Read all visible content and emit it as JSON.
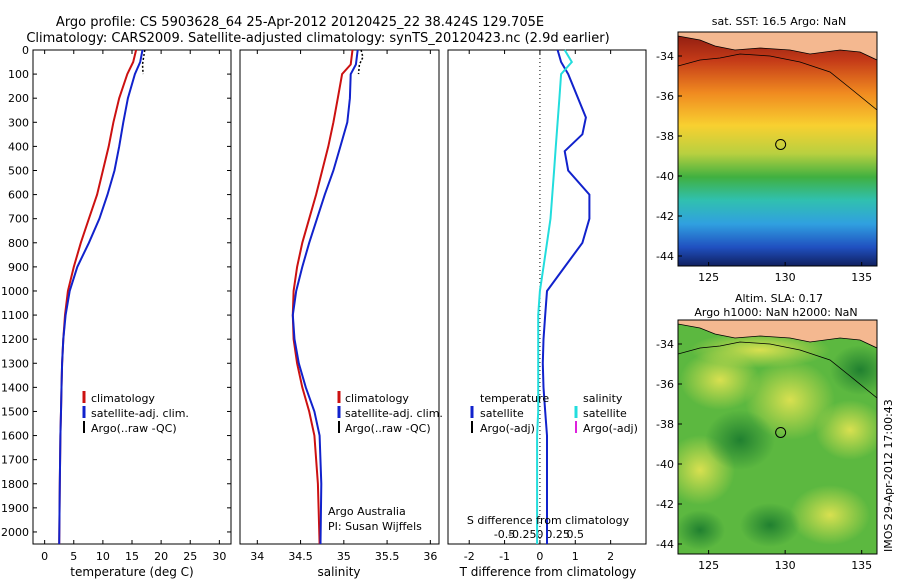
{
  "header": {
    "line1": "Argo profile: CS 5903628_64 25-Apr-2012 20120425_22 38.424S 129.705E",
    "line2": "Climatology: CARS2009. Satellite-adjusted climatology: synTS_20120423.nc (2.9d earlier)"
  },
  "colors": {
    "climatology": "#cc1111",
    "satellite": "#1122cc",
    "argo": "#000000",
    "salinity_sat": "#22dddd",
    "salinity_argo": "#dd22dd",
    "land": "#f4b890"
  },
  "side_label": "IMOS 29-Apr-2012 17:00:43",
  "chart_data": [
    {
      "id": "temperature",
      "type": "line",
      "xlabel": "temperature (deg C)",
      "ylabel": "",
      "xlim": [
        -2,
        32
      ],
      "ylim": [
        2050,
        0
      ],
      "xticks": [
        0,
        5,
        10,
        15,
        20,
        25,
        30
      ],
      "yticks": [
        0,
        100,
        200,
        300,
        400,
        500,
        600,
        700,
        800,
        900,
        1000,
        1100,
        1200,
        1300,
        1400,
        1500,
        1600,
        1700,
        1800,
        1900,
        2000
      ],
      "legend": [
        "climatology",
        "satellite-adj. clim.",
        "Argo(..raw -QC)"
      ],
      "series": [
        {
          "name": "climatology",
          "color": "#cc1111",
          "x": [
            15.7,
            15.2,
            14.2,
            12.8,
            11.8,
            11.0,
            10.0,
            9.0,
            7.6,
            6.2,
            5.0,
            4.0,
            3.5,
            3.2,
            3.0,
            2.9,
            2.8,
            2.7,
            2.6,
            2.5
          ],
          "y": [
            0,
            50,
            100,
            200,
            300,
            400,
            500,
            600,
            700,
            800,
            900,
            1000,
            1100,
            1200,
            1300,
            1400,
            1500,
            1600,
            1800,
            2050
          ]
        },
        {
          "name": "satellite-adj. clim.",
          "color": "#1122cc",
          "x": [
            16.8,
            16.4,
            15.5,
            14.3,
            13.5,
            12.8,
            12.0,
            10.8,
            9.4,
            7.6,
            5.6,
            4.3,
            3.6,
            3.2,
            3.0,
            2.9,
            2.8,
            2.7,
            2.6,
            2.5
          ],
          "y": [
            0,
            50,
            100,
            200,
            300,
            400,
            500,
            600,
            700,
            800,
            900,
            1000,
            1100,
            1200,
            1300,
            1400,
            1500,
            1600,
            1800,
            2050
          ]
        },
        {
          "name": "Argo(..raw -QC)",
          "color": "#000000",
          "x": [
            17.2,
            17.0,
            16.8,
            16.9
          ],
          "y": [
            0,
            30,
            60,
            100
          ]
        }
      ]
    },
    {
      "id": "salinity",
      "type": "line",
      "xlabel": "salinity",
      "ylabel": "",
      "xlim": [
        33.8,
        36.1
      ],
      "ylim": [
        2050,
        0
      ],
      "xticks": [
        34,
        34.5,
        35,
        35.5,
        36
      ],
      "xticklabels": [
        "34",
        "34.5",
        "35",
        "35.5",
        "36"
      ],
      "legend": [
        "climatology",
        "satellite-adj. clim.",
        "Argo(..raw -QC)"
      ],
      "annotations": [
        "Argo Australia",
        "PI: Susan Wijffels"
      ],
      "series": [
        {
          "name": "climatology",
          "color": "#cc1111",
          "x": [
            35.1,
            35.08,
            34.98,
            34.93,
            34.88,
            34.82,
            34.75,
            34.68,
            34.6,
            34.52,
            34.46,
            34.42,
            34.41,
            34.42,
            34.46,
            34.52,
            34.6,
            34.66,
            34.7,
            34.72
          ],
          "y": [
            0,
            60,
            100,
            200,
            300,
            400,
            500,
            600,
            700,
            800,
            900,
            1000,
            1100,
            1200,
            1300,
            1400,
            1500,
            1600,
            1800,
            2050
          ]
        },
        {
          "name": "satellite-adj. clim.",
          "color": "#1122cc",
          "x": [
            35.16,
            35.14,
            35.08,
            35.07,
            35.04,
            34.96,
            34.88,
            34.78,
            34.69,
            34.6,
            34.52,
            34.45,
            34.41,
            34.43,
            34.48,
            34.56,
            34.66,
            34.72,
            34.74,
            34.73
          ],
          "y": [
            0,
            60,
            100,
            200,
            300,
            400,
            500,
            600,
            700,
            800,
            900,
            1000,
            1100,
            1200,
            1300,
            1400,
            1500,
            1600,
            1800,
            2050
          ]
        },
        {
          "name": "Argo(..raw -QC)",
          "color": "#000000",
          "x": [
            35.2,
            35.22,
            35.18,
            35.17
          ],
          "y": [
            0,
            30,
            60,
            100
          ]
        }
      ]
    },
    {
      "id": "difference",
      "type": "line",
      "xlabel": "T difference from climatology",
      "x2label": "S difference from climatology",
      "xlim": [
        -2.6,
        3.0
      ],
      "ylim": [
        2050,
        0
      ],
      "xticks": [
        -2,
        -1,
        0,
        1,
        2
      ],
      "xticklabels": [
        "-2",
        "-1",
        "0",
        "1",
        "2"
      ],
      "x2ticks": [
        -1,
        -0.5,
        0,
        0.5,
        1
      ],
      "x2ticklabels": [
        "-0.5",
        "-0.25",
        "0",
        "0.25",
        "0.5"
      ],
      "legend_headers": [
        "temperature",
        "salinity"
      ],
      "legend": [
        "satellite",
        "Argo(-adj)",
        "satellite",
        "Argo(-adj)"
      ],
      "series": [
        {
          "name": "temperature satellite",
          "color": "#1122cc",
          "x": [
            0.5,
            0.6,
            0.8,
            1.3,
            1.2,
            0.7,
            0.8,
            1.4,
            1.4,
            1.2,
            0.7,
            0.2,
            0.15,
            0.1,
            0.08,
            0.1,
            0.15,
            0.2,
            0.2,
            0.2
          ],
          "y": [
            0,
            50,
            100,
            280,
            350,
            420,
            500,
            600,
            700,
            800,
            900,
            1000,
            1100,
            1200,
            1300,
            1400,
            1500,
            1600,
            1800,
            2050
          ]
        },
        {
          "name": "salinity satellite",
          "color": "#22dddd",
          "x": [
            0.7,
            0.9,
            0.6,
            0.55,
            0.5,
            0.45,
            0.4,
            0.35,
            0.3,
            0.2,
            0.1,
            0.0,
            -0.05,
            -0.05,
            -0.05,
            -0.05,
            -0.05,
            -0.08,
            -0.08,
            -0.08
          ],
          "y": [
            0,
            50,
            100,
            200,
            300,
            400,
            500,
            600,
            700,
            800,
            900,
            1000,
            1100,
            1200,
            1300,
            1400,
            1500,
            1600,
            1800,
            2050
          ]
        }
      ]
    },
    {
      "id": "sst-map",
      "type": "heatmap",
      "title": "sat. SST: 16.5  Argo: NaN",
      "xlim": [
        123,
        136
      ],
      "ylim": [
        -44.5,
        -32.8
      ],
      "xticks": [
        125,
        130,
        135
      ],
      "yticks": [
        -34,
        -36,
        -38,
        -40,
        -42,
        -44
      ],
      "marker": {
        "lon": 129.705,
        "lat": -38.424
      }
    },
    {
      "id": "sla-map",
      "type": "heatmap",
      "title": "Altim. SLA: 0.17",
      "subtitle": "Argo h1000: NaN  h2000: NaN",
      "xlim": [
        123,
        136
      ],
      "ylim": [
        -44.5,
        -32.8
      ],
      "xticks": [
        125,
        130,
        135
      ],
      "yticks": [
        -34,
        -36,
        -38,
        -40,
        -42,
        -44
      ],
      "marker": {
        "lon": 129.705,
        "lat": -38.424
      }
    }
  ]
}
